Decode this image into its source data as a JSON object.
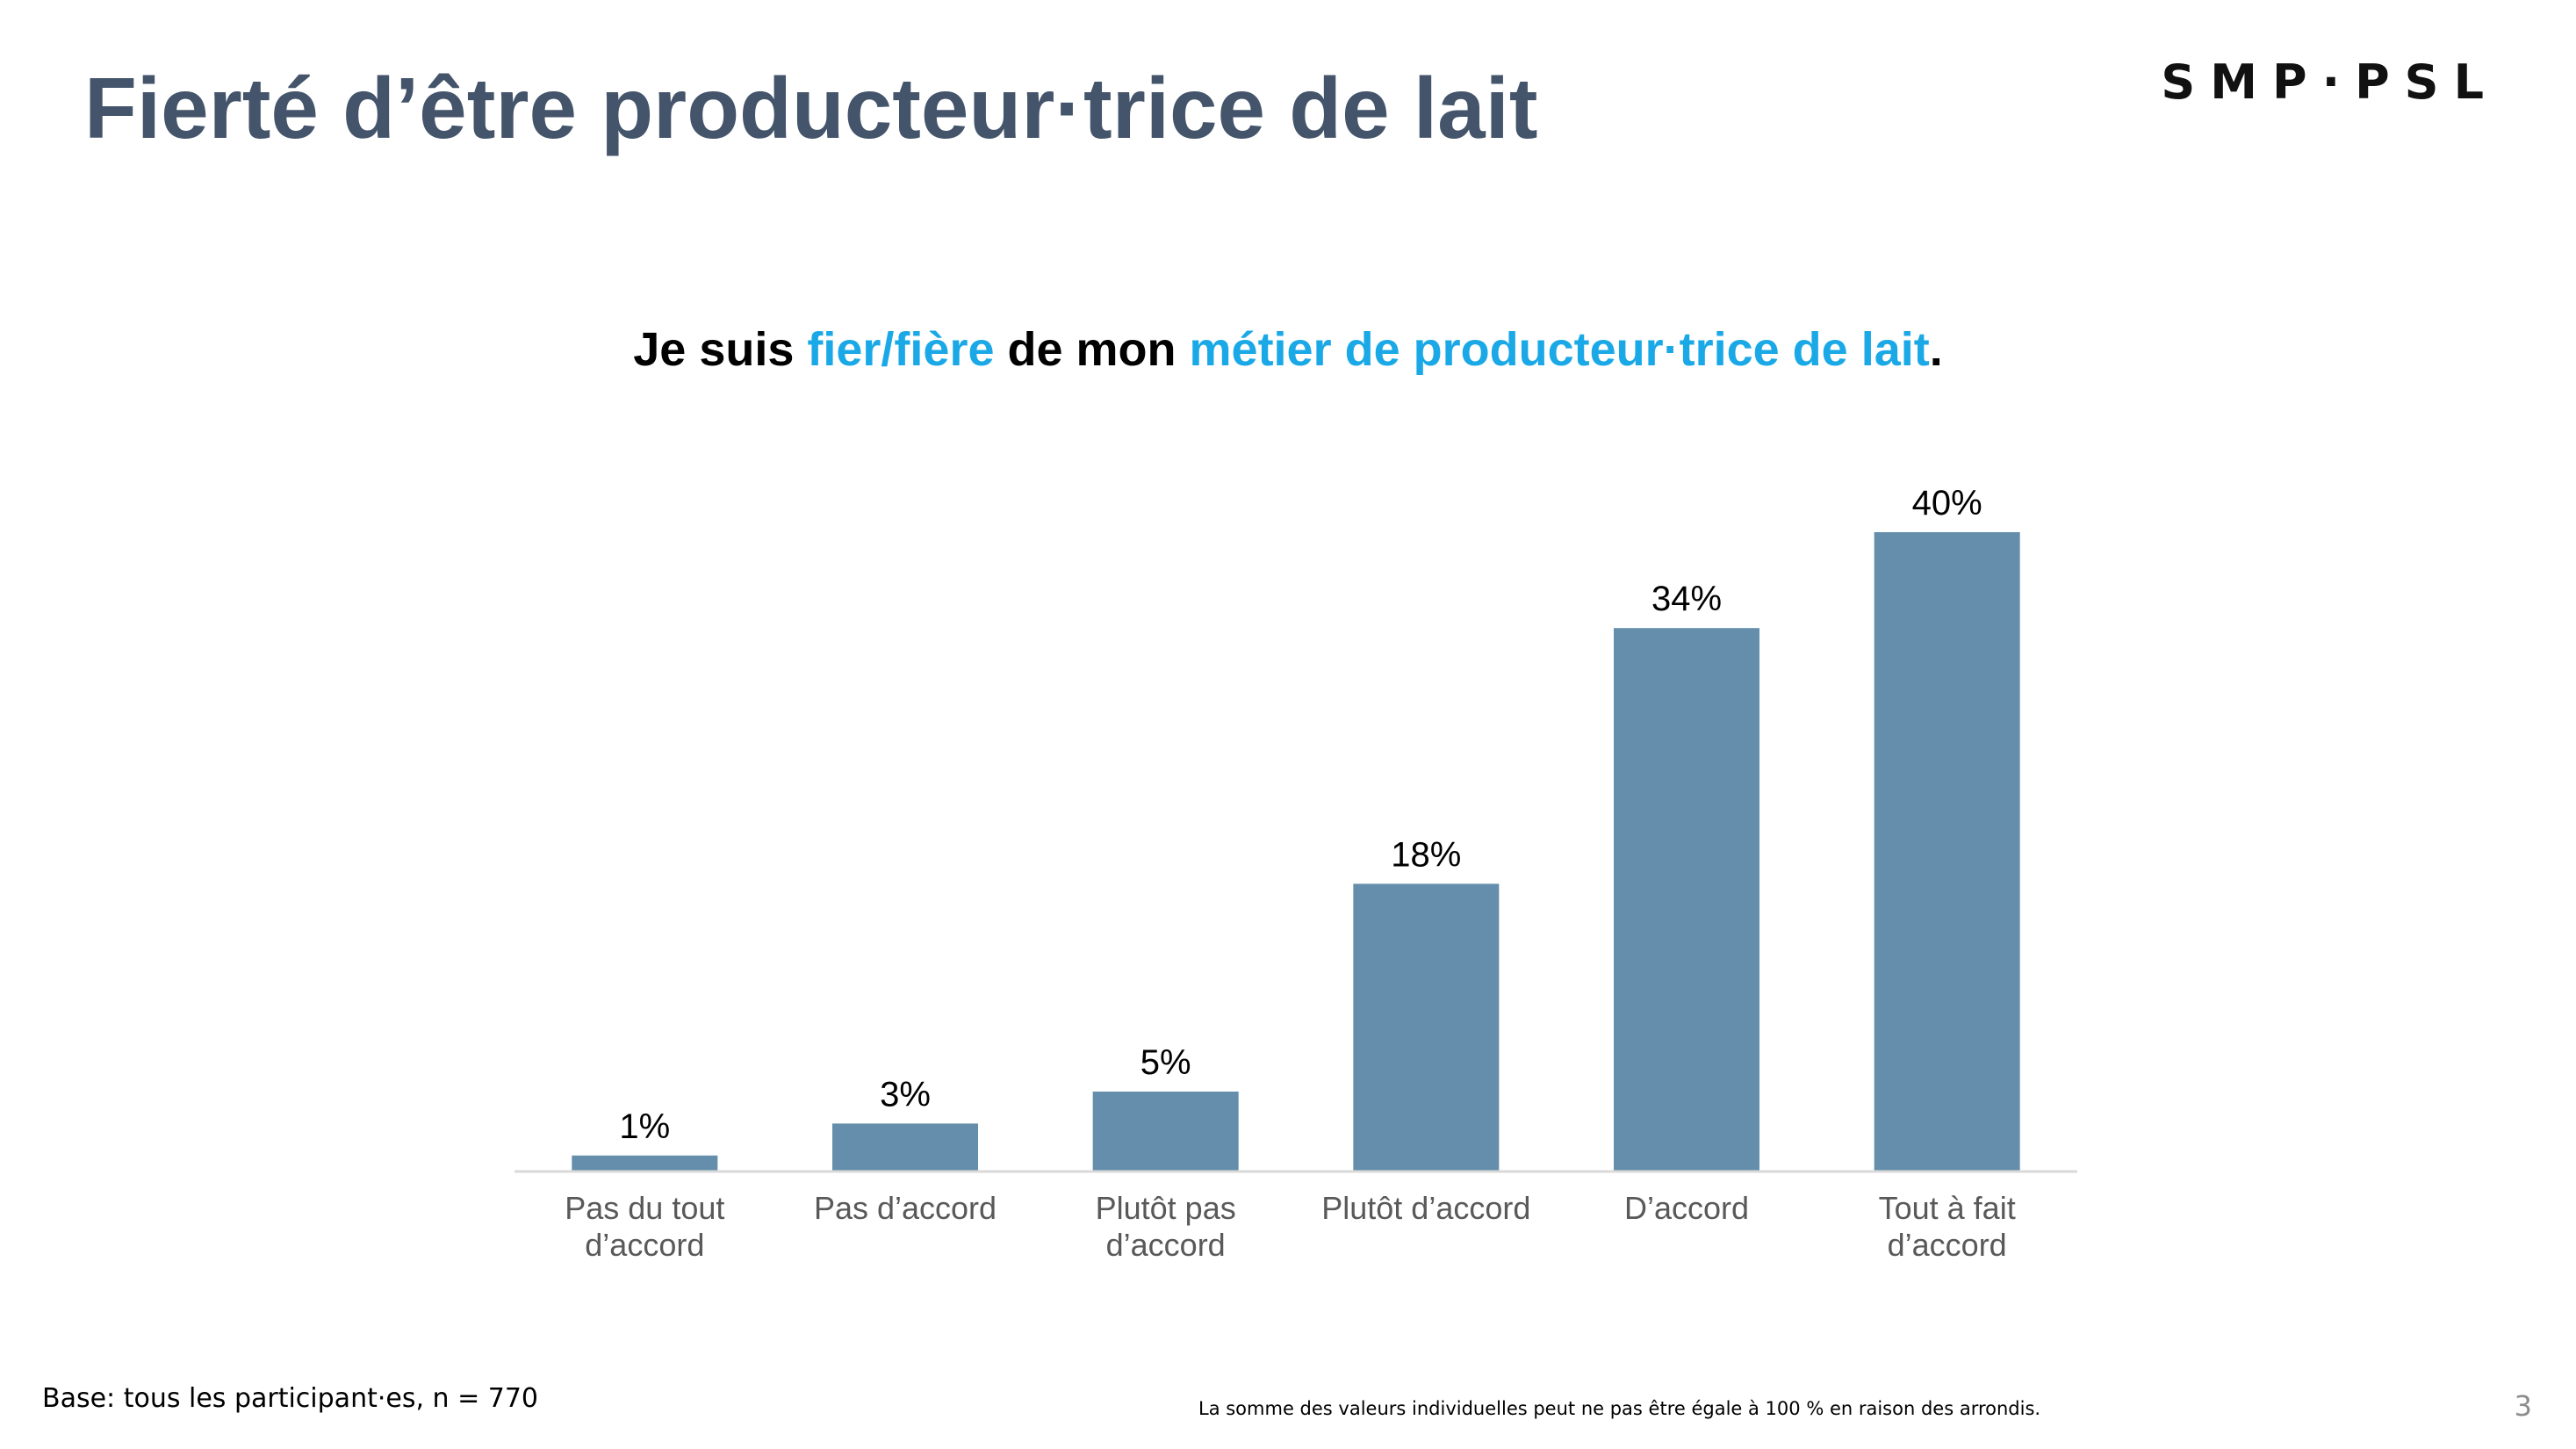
{
  "slide": {
    "title": "Fierté d’être producteur·trice de lait",
    "logo_text": "SMP·PSL",
    "subtitle": {
      "part1": "Je suis ",
      "accent1": "fier/fière",
      "part2": " de mon ",
      "accent2": "métier de producteur·trice de lait",
      "part3": "."
    },
    "base_note": "Base: tous les participant·es, n = 770",
    "rounding_note": "La somme des valeurs individuelles peut ne pas être égale à 100 % en raison des arrondis.",
    "page_number": "3",
    "accent_color": "#1AA9E6",
    "title_color": "#44546A"
  },
  "chart_data": {
    "type": "bar",
    "title": "Je suis fier/fière de mon métier de producteur·trice de lait.",
    "categories": [
      [
        "Pas du tout",
        "d’accord"
      ],
      [
        "Pas d’accord"
      ],
      [
        "Plutôt pas",
        "d’accord"
      ],
      [
        "Plutôt d’accord"
      ],
      [
        "D’accord"
      ],
      [
        "Tout à fait",
        "d’accord"
      ]
    ],
    "values": [
      1,
      3,
      5,
      18,
      34,
      40
    ],
    "value_labels": [
      "1%",
      "3%",
      "5%",
      "18%",
      "34%",
      "40%"
    ],
    "unit": "%",
    "ylim": [
      0,
      40
    ],
    "xlabel": "",
    "ylabel": "",
    "grid": false,
    "legend": "none",
    "bar_color": "#648EAB",
    "axis_color": "#D9D9D9"
  }
}
